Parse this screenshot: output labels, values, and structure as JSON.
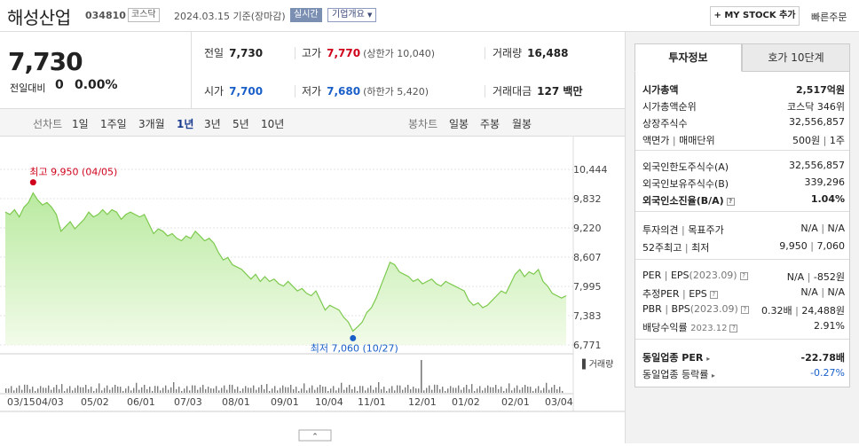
{
  "header": {
    "name": "해성산업",
    "code": "034810",
    "market": "코스닥",
    "date": "2024.03.15",
    "basis": "기준(장마감)",
    "live": "실시간",
    "company_info": "기업개요",
    "my_stock": "+ MY STOCK 추가",
    "quick_order": "빠른주문"
  },
  "price": {
    "current": "7,730",
    "change_label": "전일대비",
    "change": "0",
    "percent": "0.00%"
  },
  "stats": {
    "prev_label": "전일",
    "prev": "7,730",
    "high_label": "고가",
    "high": "7,770",
    "upper_limit": "(상한가 10,040)",
    "volume_label": "거래량",
    "volume": "16,488",
    "open_label": "시가",
    "open": "7,700",
    "low_label": "저가",
    "low": "7,680",
    "lower_limit": "(하한가 5,420)",
    "amount_label": "거래대금",
    "amount": "127 백만"
  },
  "periods": {
    "line": "선차트",
    "items": [
      "1일",
      "1주일",
      "3개월",
      "1년",
      "3년",
      "5년",
      "10년"
    ],
    "active": "1년",
    "candle": "봉차트",
    "candle_items": [
      "일봉",
      "주봉",
      "월봉"
    ]
  },
  "chart_data": {
    "type": "area",
    "y_ticks": [
      "10,444",
      "9,832",
      "9,220",
      "8,607",
      "7,995",
      "7,383",
      "6,771"
    ],
    "x_ticks": [
      "03/15",
      "04/03",
      "05/02",
      "06/01",
      "07/03",
      "08/01",
      "09/01",
      "10/04",
      "11/01",
      "12/01",
      "01/02",
      "02/01",
      "03/04"
    ],
    "ylim": [
      6771,
      10444
    ],
    "high_label": "최고 9,950 (04/05)",
    "low_label": "최저 7,060 (10/27)",
    "volume_label": "거래량",
    "values": [
      9550,
      9500,
      9600,
      9450,
      9650,
      9750,
      9950,
      9800,
      9700,
      9750,
      9650,
      9500,
      9150,
      9250,
      9350,
      9200,
      9300,
      9400,
      9550,
      9450,
      9500,
      9600,
      9500,
      9600,
      9550,
      9400,
      9500,
      9550,
      9500,
      9450,
      9500,
      9300,
      9100,
      9200,
      9150,
      9050,
      9100,
      9000,
      8950,
      9050,
      9000,
      9150,
      9050,
      8950,
      9000,
      8900,
      8700,
      8550,
      8600,
      8450,
      8400,
      8350,
      8250,
      8150,
      8250,
      8100,
      8200,
      8100,
      8150,
      8050,
      8000,
      8100,
      8000,
      7900,
      7950,
      7850,
      7800,
      7900,
      7700,
      7500,
      7600,
      7550,
      7500,
      7350,
      7250,
      7060,
      7150,
      7250,
      7450,
      7550,
      7750,
      8000,
      8250,
      8500,
      8450,
      8300,
      8250,
      8200,
      8100,
      8150,
      8050,
      8100,
      8150,
      8050,
      8000,
      8100,
      8050,
      8000,
      7950,
      7900,
      7700,
      7600,
      7650,
      7550,
      7600,
      7700,
      7800,
      7900,
      7850,
      8050,
      8250,
      8350,
      8200,
      8300,
      8250,
      8350,
      8100,
      8000,
      7850,
      7800,
      7750,
      7800
    ]
  },
  "right": {
    "tab_info": "투자정보",
    "tab_quote": "호가 10단계",
    "market_cap_label": "시가총액",
    "market_cap": "2,517억원",
    "rank_label": "시가총액순위",
    "rank": "코스닥 346위",
    "shares_label": "상장주식수",
    "shares": "32,556,857",
    "par_label": "액면가",
    "par_sep": "|",
    "unit_label": "매매단위",
    "par": "500원",
    "unit": "1주",
    "foreign_limit_label": "외국인한도주식수(A)",
    "foreign_limit": "32,556,857",
    "foreign_hold_label": "외국인보유주식수(B)",
    "foreign_hold": "339,296",
    "foreign_ratio_label": "외국인소진율(B/A)",
    "foreign_ratio": "1.04%",
    "opinion_label": "투자의견",
    "target_label": "목표주가",
    "opinion": "N/A",
    "target": "N/A",
    "w52_label": "52주최고",
    "w52_low_label": "최저",
    "w52_high": "9,950",
    "w52_low": "7,060",
    "per_label": "PER",
    "eps_label": "EPS",
    "eps_period": "(2023.09)",
    "per": "N/A",
    "eps": "-852원",
    "est_per_label": "추정PER",
    "est_eps_label": "EPS",
    "est_per": "N/A",
    "est_eps": "N/A",
    "pbr_label": "PBR",
    "bps_label": "BPS",
    "bps_period": "(2023.09)",
    "pbr": "0.32배",
    "bps": "24,488원",
    "div_label": "배당수익률",
    "div_period": "2023.12",
    "div": "2.91%",
    "ind_per_label": "동일업종 PER",
    "ind_per": "-22.78배",
    "ind_rate_label": "동일업종 등락률",
    "ind_rate": "-0.27%"
  }
}
